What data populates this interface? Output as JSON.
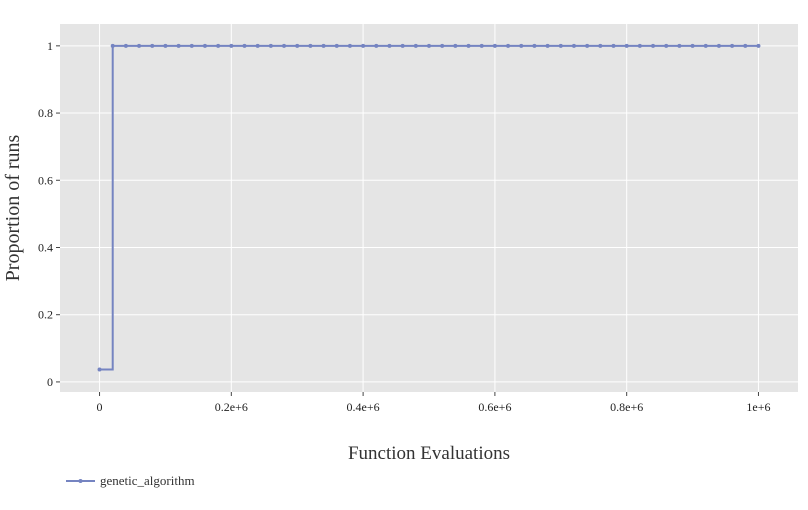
{
  "chart_data": {
    "type": "line",
    "xlabel": "Function Evaluations",
    "ylabel": "Proportion of runs",
    "xlim": [
      -60000,
      1060000
    ],
    "ylim": [
      -0.03,
      1.065
    ],
    "x_ticks": [
      0,
      200000,
      400000,
      600000,
      800000,
      1000000
    ],
    "x_tick_labels": [
      "0",
      "0.2e+6",
      "0.4e+6",
      "0.6e+6",
      "0.8e+6",
      "1e+6"
    ],
    "y_ticks": [
      0,
      0.2,
      0.4,
      0.6,
      0.8,
      1
    ],
    "y_tick_labels": [
      "0",
      "0.2",
      "0.4",
      "0.6",
      "0.8",
      "1"
    ],
    "grid": true,
    "legend_position": "bottom-left",
    "colors": {
      "panel_background": "#e5e5e5",
      "grid": "#ffffff",
      "series": "#7584c1"
    },
    "series": [
      {
        "name": "genetic_algorithm",
        "step": "hv",
        "x": [
          0,
          20000,
          40000,
          60000,
          80000,
          100000,
          120000,
          140000,
          160000,
          180000,
          200000,
          220000,
          240000,
          260000,
          280000,
          300000,
          320000,
          340000,
          360000,
          380000,
          400000,
          420000,
          440000,
          460000,
          480000,
          500000,
          520000,
          540000,
          560000,
          580000,
          600000,
          620000,
          640000,
          660000,
          680000,
          700000,
          720000,
          740000,
          760000,
          780000,
          800000,
          820000,
          840000,
          860000,
          880000,
          900000,
          920000,
          940000,
          960000,
          980000,
          1000000
        ],
        "y": [
          0.037,
          1,
          1,
          1,
          1,
          1,
          1,
          1,
          1,
          1,
          1,
          1,
          1,
          1,
          1,
          1,
          1,
          1,
          1,
          1,
          1,
          1,
          1,
          1,
          1,
          1,
          1,
          1,
          1,
          1,
          1,
          1,
          1,
          1,
          1,
          1,
          1,
          1,
          1,
          1,
          1,
          1,
          1,
          1,
          1,
          1,
          1,
          1,
          1,
          1,
          1
        ]
      }
    ]
  }
}
